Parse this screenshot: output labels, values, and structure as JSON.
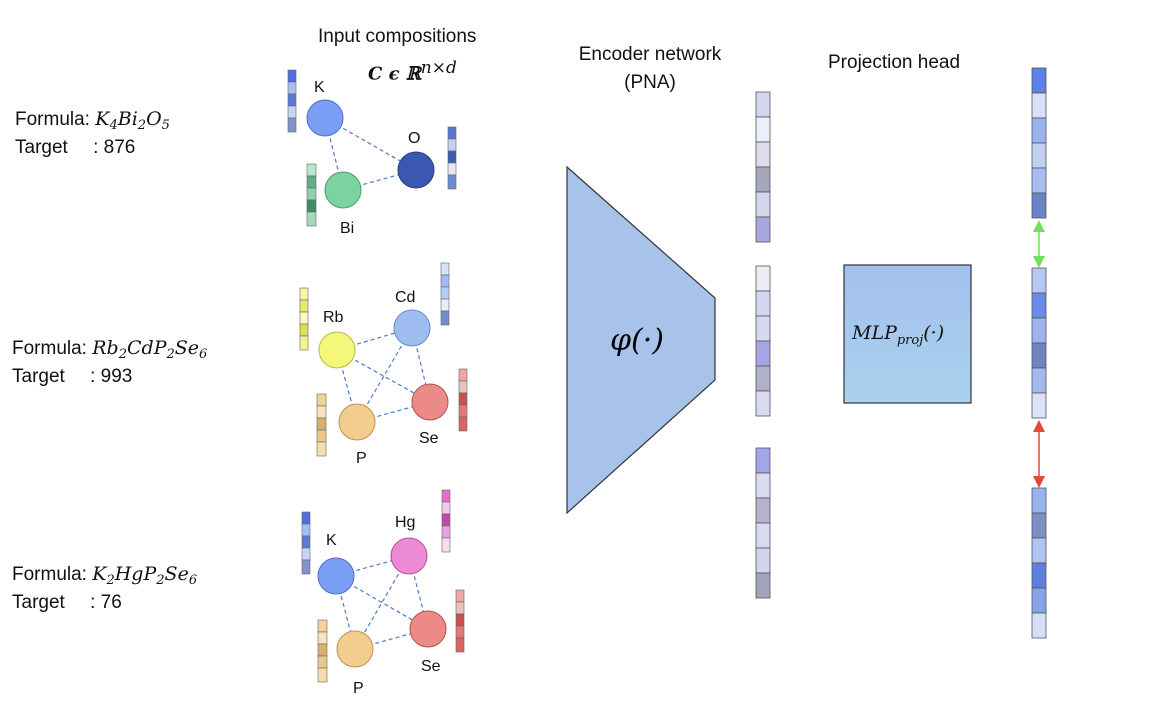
{
  "headers": {
    "input": "Input compositions",
    "input_math": "C ϵ ℝ",
    "input_math_sup": "n×d",
    "encoder_line1": "Encoder network",
    "encoder_line2": "(PNA)",
    "projection": "Projection head"
  },
  "samples": [
    {
      "formula_label": "Formula:",
      "formula_parts": [
        [
          "K",
          "4"
        ],
        [
          "Bi",
          "2"
        ],
        [
          "O",
          "5"
        ]
      ],
      "target_label": "Target",
      "target_value": ": 876",
      "elements": [
        {
          "symbol": "K",
          "color": "#7b9ef5"
        },
        {
          "symbol": "O",
          "color": "#3a58b0"
        },
        {
          "symbol": "Bi",
          "color": "#7dd3a0"
        }
      ]
    },
    {
      "formula_label": "Formula:",
      "formula_parts": [
        [
          "Rb",
          "2"
        ],
        [
          "Cd",
          ""
        ],
        [
          "P",
          "2"
        ],
        [
          "Se",
          "6"
        ]
      ],
      "target_label": "Target",
      "target_value": ": 993",
      "elements": [
        {
          "symbol": "Rb",
          "color": "#f4f77a"
        },
        {
          "symbol": "Cd",
          "color": "#9ebcf0"
        },
        {
          "symbol": "P",
          "color": "#f2cd8e"
        },
        {
          "symbol": "Se",
          "color": "#ec8a88"
        }
      ]
    },
    {
      "formula_label": "Formula:",
      "formula_parts": [
        [
          "K",
          "2"
        ],
        [
          "Hg",
          ""
        ],
        [
          "P",
          "2"
        ],
        [
          "Se",
          "6"
        ]
      ],
      "target_label": "Target",
      "target_value": ": 76",
      "elements": [
        {
          "symbol": "K",
          "color": "#7b9ef5"
        },
        {
          "symbol": "Hg",
          "color": "#ec8ad6"
        },
        {
          "symbol": "P",
          "color": "#f2cd8e"
        },
        {
          "symbol": "Se",
          "color": "#ec8a88"
        }
      ]
    }
  ],
  "encoder": {
    "label": "φ(·)",
    "fill": "#a7c3ea"
  },
  "projection_head": {
    "label_main": "MLP",
    "label_sub": "proj",
    "label_tail": "(·)",
    "fill": "#a7c3ea"
  },
  "arrows": {
    "positive_color": "#72e05a",
    "negative_color": "#e04a3a"
  }
}
